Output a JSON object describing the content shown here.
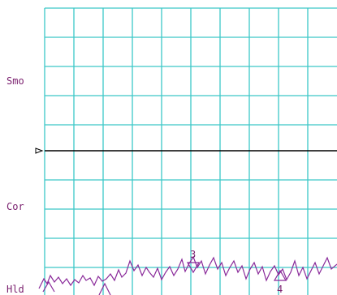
{
  "side_labels": {
    "smoothing": "Smo",
    "correction": "Cor",
    "hold": "Hld"
  },
  "markers": [
    {
      "label": "3"
    },
    {
      "label": "4"
    }
  ]
}
